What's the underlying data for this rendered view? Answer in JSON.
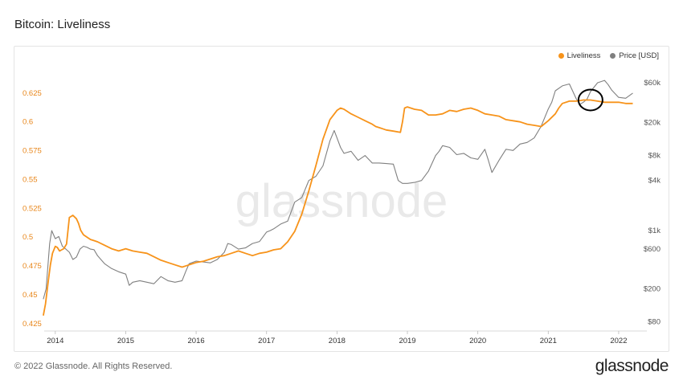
{
  "title": "Bitcoin: Liveliness",
  "footer": {
    "copyright": "© 2022 Glassnode. All Rights Reserved.",
    "logo": "glassnode"
  },
  "watermark": "glassnode",
  "colors": {
    "liveliness": "#f7931a",
    "price": "#808080",
    "left_axis_text": "#e8861a",
    "right_axis_text": "#555555",
    "annotation": "#000000"
  },
  "chart_data": {
    "type": "line",
    "legend": [
      "Liveliness",
      "Price [USD]"
    ],
    "legend_placement": "top-right",
    "grid": false,
    "x_ticks": [
      "2014",
      "2015",
      "2016",
      "2017",
      "2018",
      "2019",
      "2020",
      "2021",
      "2022"
    ],
    "left_axis": {
      "label": "",
      "ticks": [
        "0.625",
        "0.6",
        "0.575",
        "0.55",
        "0.525",
        "0.5",
        "0.475",
        "0.45",
        "0.425"
      ],
      "tick_values": [
        0.625,
        0.6,
        0.575,
        0.55,
        0.525,
        0.5,
        0.475,
        0.45,
        0.425
      ],
      "range": [
        0.42,
        0.65
      ]
    },
    "right_axis": {
      "label": "",
      "scale": "log",
      "ticks": [
        "$60k",
        "$20k",
        "$8k",
        "$4k",
        "$1k",
        "$600",
        "$200",
        "$80"
      ],
      "tick_values": [
        60000,
        20000,
        8000,
        4000,
        1000,
        600,
        200,
        80
      ],
      "range": [
        65,
        100000
      ]
    },
    "annotation": {
      "type": "circle",
      "x": 2021.6,
      "note": ""
    },
    "series": [
      {
        "name": "Liveliness",
        "axis": "left",
        "x": [
          2013.83,
          2013.86,
          2013.9,
          2013.93,
          2013.96,
          2014.0,
          2014.03,
          2014.06,
          2014.09,
          2014.12,
          2014.16,
          2014.2,
          2014.25,
          2014.3,
          2014.33,
          2014.36,
          2014.4,
          2014.45,
          2014.5,
          2014.55,
          2014.6,
          2014.7,
          2014.8,
          2014.9,
          2015.0,
          2015.1,
          2015.2,
          2015.3,
          2015.4,
          2015.5,
          2015.6,
          2015.7,
          2015.8,
          2015.9,
          2016.0,
          2016.1,
          2016.2,
          2016.3,
          2016.4,
          2016.5,
          2016.6,
          2016.7,
          2016.8,
          2016.9,
          2017.0,
          2017.1,
          2017.2,
          2017.3,
          2017.4,
          2017.5,
          2017.6,
          2017.7,
          2017.8,
          2017.9,
          2018.0,
          2018.05,
          2018.1,
          2018.2,
          2018.3,
          2018.4,
          2018.5,
          2018.55,
          2018.6,
          2018.65,
          2018.7,
          2018.8,
          2018.9,
          2018.93,
          2018.96,
          2019.0,
          2019.1,
          2019.2,
          2019.3,
          2019.4,
          2019.5,
          2019.6,
          2019.7,
          2019.8,
          2019.9,
          2020.0,
          2020.1,
          2020.2,
          2020.3,
          2020.4,
          2020.5,
          2020.6,
          2020.7,
          2020.8,
          2020.9,
          2021.0,
          2021.1,
          2021.15,
          2021.2,
          2021.3,
          2021.4,
          2021.5,
          2021.6,
          2021.7,
          2021.8,
          2021.9,
          2022.0,
          2022.1,
          2022.2
        ],
        "values": [
          0.432,
          0.442,
          0.462,
          0.476,
          0.486,
          0.492,
          0.491,
          0.488,
          0.489,
          0.49,
          0.494,
          0.517,
          0.519,
          0.516,
          0.512,
          0.506,
          0.502,
          0.5,
          0.498,
          0.497,
          0.496,
          0.493,
          0.49,
          0.488,
          0.49,
          0.488,
          0.487,
          0.486,
          0.483,
          0.48,
          0.478,
          0.476,
          0.474,
          0.476,
          0.478,
          0.479,
          0.481,
          0.483,
          0.484,
          0.486,
          0.488,
          0.486,
          0.484,
          0.486,
          0.487,
          0.489,
          0.49,
          0.496,
          0.505,
          0.52,
          0.54,
          0.562,
          0.585,
          0.602,
          0.61,
          0.612,
          0.611,
          0.607,
          0.604,
          0.601,
          0.598,
          0.596,
          0.595,
          0.594,
          0.593,
          0.592,
          0.591,
          0.6,
          0.612,
          0.613,
          0.611,
          0.61,
          0.606,
          0.606,
          0.607,
          0.61,
          0.609,
          0.611,
          0.612,
          0.61,
          0.607,
          0.606,
          0.605,
          0.602,
          0.601,
          0.6,
          0.598,
          0.597,
          0.596,
          0.601,
          0.607,
          0.612,
          0.616,
          0.618,
          0.618,
          0.619,
          0.619,
          0.618,
          0.617,
          0.617,
          0.617,
          0.616,
          0.616
        ]
      },
      {
        "name": "Price [USD]",
        "axis": "right",
        "x": [
          2013.83,
          2013.87,
          2013.92,
          2013.95,
          2014.0,
          2014.05,
          2014.1,
          2014.15,
          2014.2,
          2014.25,
          2014.3,
          2014.35,
          2014.4,
          2014.45,
          2014.5,
          2014.55,
          2014.6,
          2014.7,
          2014.8,
          2014.9,
          2015.0,
          2015.05,
          2015.1,
          2015.2,
          2015.3,
          2015.4,
          2015.5,
          2015.6,
          2015.7,
          2015.8,
          2015.85,
          2015.9,
          2016.0,
          2016.1,
          2016.2,
          2016.3,
          2016.4,
          2016.45,
          2016.5,
          2016.6,
          2016.7,
          2016.8,
          2016.9,
          2017.0,
          2017.05,
          2017.1,
          2017.2,
          2017.3,
          2017.4,
          2017.5,
          2017.6,
          2017.7,
          2017.8,
          2017.9,
          2017.96,
          2018.0,
          2018.05,
          2018.1,
          2018.2,
          2018.3,
          2018.4,
          2018.5,
          2018.6,
          2018.7,
          2018.8,
          2018.87,
          2018.93,
          2019.0,
          2019.1,
          2019.2,
          2019.3,
          2019.4,
          2019.45,
          2019.5,
          2019.6,
          2019.7,
          2019.8,
          2019.9,
          2020.0,
          2020.1,
          2020.15,
          2020.2,
          2020.3,
          2020.4,
          2020.5,
          2020.6,
          2020.7,
          2020.8,
          2020.9,
          2021.0,
          2021.05,
          2021.1,
          2021.2,
          2021.3,
          2021.4,
          2021.45,
          2021.5,
          2021.55,
          2021.6,
          2021.7,
          2021.8,
          2021.85,
          2021.9,
          2022.0,
          2022.1,
          2022.2
        ],
        "values": [
          150,
          200,
          700,
          1000,
          800,
          850,
          650,
          600,
          550,
          450,
          480,
          600,
          650,
          630,
          600,
          590,
          500,
          400,
          350,
          320,
          300,
          220,
          240,
          250,
          240,
          230,
          280,
          250,
          240,
          250,
          320,
          400,
          430,
          420,
          410,
          450,
          550,
          700,
          680,
          600,
          620,
          700,
          740,
          960,
          1000,
          1050,
          1200,
          1300,
          2200,
          2500,
          4000,
          4500,
          6000,
          12000,
          16000,
          13000,
          10000,
          8500,
          9000,
          7000,
          8000,
          6500,
          6500,
          6400,
          6300,
          4000,
          3700,
          3700,
          3800,
          4000,
          5200,
          8000,
          9000,
          10500,
          10000,
          8200,
          8500,
          7500,
          7200,
          9500,
          7000,
          5000,
          7000,
          9500,
          9200,
          11000,
          11500,
          13000,
          18000,
          29000,
          35000,
          48000,
          55000,
          58000,
          38000,
          33000,
          35000,
          38000,
          47000,
          60000,
          64000,
          57000,
          49000,
          40000,
          39000,
          45000
        ]
      }
    ]
  }
}
